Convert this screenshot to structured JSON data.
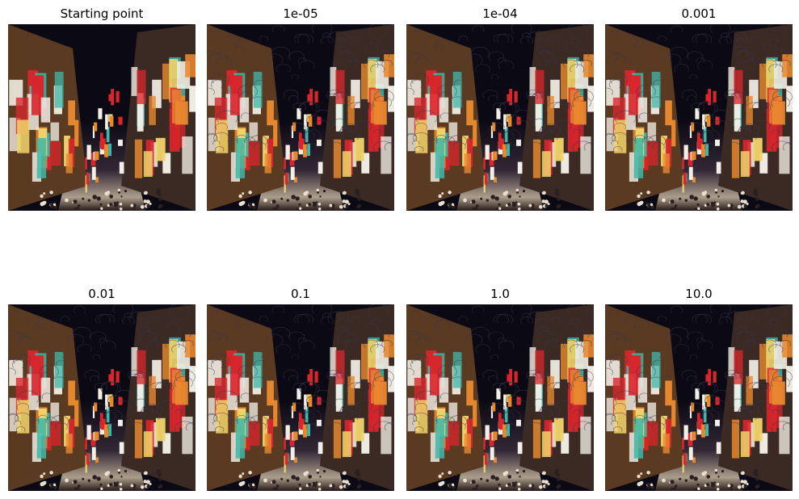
{
  "figure": {
    "panels": [
      {
        "title": "Starting point",
        "style": "clean"
      },
      {
        "title": "1e-05",
        "style": "stylized"
      },
      {
        "title": "1e-04",
        "style": "stylized"
      },
      {
        "title": "0.001",
        "style": "stylized"
      },
      {
        "title": "0.01",
        "style": "stylized"
      },
      {
        "title": "0.1",
        "style": "stylized"
      },
      {
        "title": "1.0",
        "style": "stylized"
      },
      {
        "title": "10.0",
        "style": "stylized"
      }
    ],
    "scene": "night street with illuminated vertical signboards"
  },
  "colors": {
    "sky": "#0b0a14",
    "sign_red": "#d8262c",
    "sign_white": "#f2efe6",
    "sign_orange": "#e8892f",
    "sign_yellow": "#f1d36a",
    "sign_teal": "#3fb7a8",
    "building_brown": "#5b3a22",
    "street_dark": "#2a1e1a"
  }
}
